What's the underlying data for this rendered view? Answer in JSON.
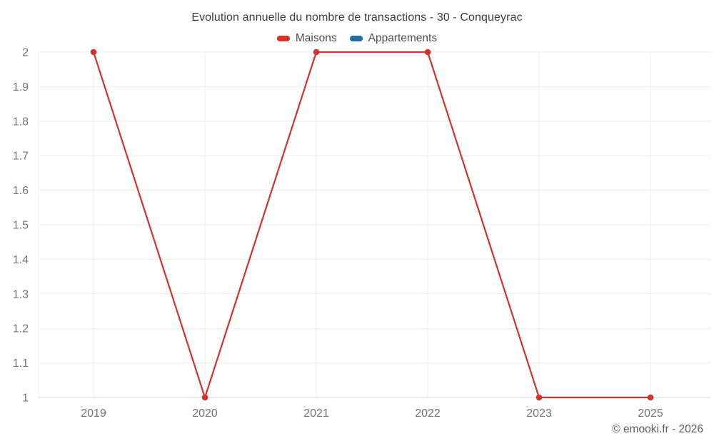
{
  "copyright": "© emooki.fr - 2026",
  "legend": [
    {
      "label": "Maisons",
      "color": "#d7312e"
    },
    {
      "label": "Appartements",
      "color": "#1c6ea4"
    }
  ],
  "chart_data": {
    "type": "line",
    "title": "Evolution annuelle du nombre de transactions - 30 - Conqueyrac",
    "categories": [
      "2019",
      "2020",
      "2021",
      "2022",
      "2023",
      "2025"
    ],
    "series": [
      {
        "name": "Maisons",
        "color": "#d7312e",
        "values": [
          2,
          1,
          2,
          2,
          1,
          1
        ]
      },
      {
        "name": "Appartements",
        "color": "#1c6ea4",
        "values": []
      }
    ],
    "xlabel": "",
    "ylabel": "",
    "ylim": [
      1,
      2
    ],
    "ytick_step": 0.1,
    "grid": true,
    "legend_position": "top",
    "colors": {
      "grid_line": "#ececec",
      "axis_line": "#d9d9d9",
      "tick_label": "#757575"
    }
  }
}
